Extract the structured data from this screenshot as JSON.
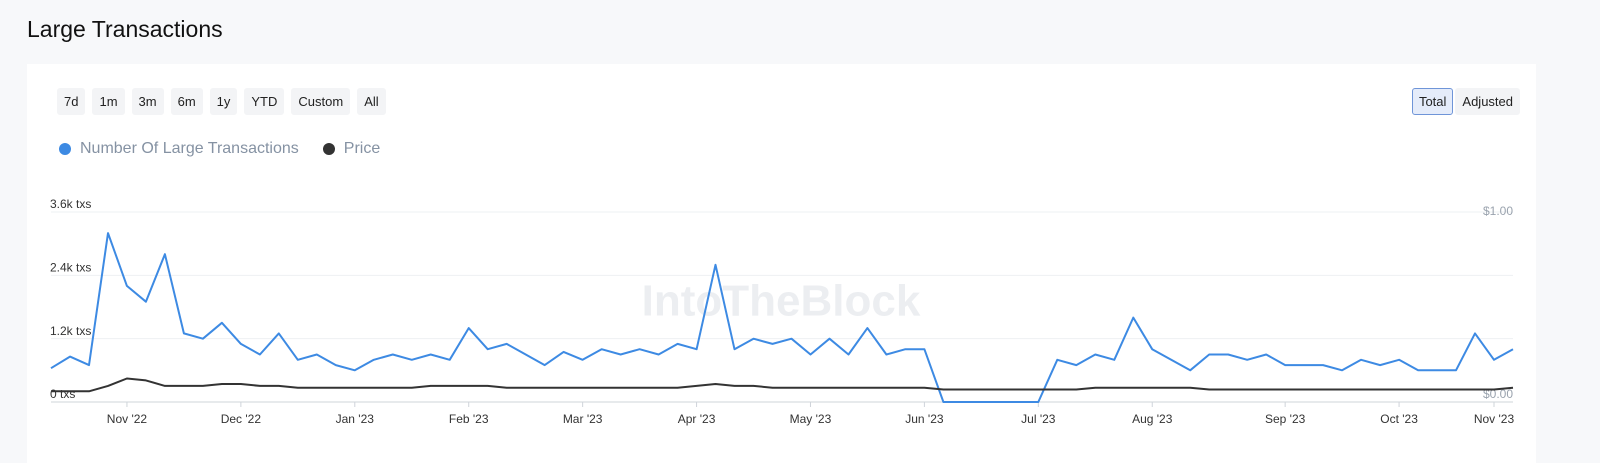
{
  "title": "Large Transactions",
  "controls": {
    "ranges": [
      "7d",
      "1m",
      "3m",
      "6m",
      "1y",
      "YTD",
      "Custom",
      "All"
    ],
    "modes": [
      "Total",
      "Adjusted"
    ]
  },
  "watermark": "IntoTheBlock",
  "chart_data": {
    "type": "line",
    "categories": [
      null,
      null,
      null,
      null,
      "Nov '22",
      null,
      null,
      null,
      null,
      null,
      "Dec '22",
      null,
      null,
      null,
      null,
      null,
      "Jan '23",
      null,
      null,
      null,
      null,
      null,
      "Feb '23",
      null,
      null,
      null,
      null,
      null,
      "Mar '23",
      null,
      null,
      null,
      null,
      null,
      "Apr '23",
      null,
      null,
      null,
      null,
      null,
      "May '23",
      null,
      null,
      null,
      null,
      null,
      "Jun '23",
      null,
      null,
      null,
      null,
      null,
      "Jul '23",
      null,
      null,
      null,
      null,
      null,
      "Aug '23",
      null,
      null,
      null,
      null,
      null,
      null,
      "Sep '23",
      null,
      null,
      null,
      null,
      null,
      "Oct '23",
      null,
      null,
      null,
      null,
      "Nov '23",
      null
    ],
    "series": [
      {
        "name": "Number Of Large Transactions",
        "color": "#3d8ae3",
        "values": [
          640,
          860,
          700,
          3200,
          2200,
          1900,
          2800,
          1300,
          1200,
          1500,
          1100,
          900,
          1300,
          800,
          900,
          700,
          600,
          800,
          900,
          800,
          900,
          800,
          1400,
          1000,
          1100,
          900,
          700,
          950,
          800,
          1000,
          900,
          1000,
          900,
          1100,
          1000,
          2600,
          1000,
          1200,
          1100,
          1200,
          900,
          1200,
          900,
          1400,
          900,
          1000,
          1000,
          0,
          0,
          0,
          0,
          0,
          0,
          800,
          700,
          900,
          800,
          1600,
          1000,
          800,
          600,
          900,
          900,
          800,
          900,
          700,
          700,
          700,
          600,
          800,
          700,
          800,
          600,
          600,
          600,
          1300,
          800,
          1000
        ]
      },
      {
        "name": "Price",
        "color": "#333333",
        "axis": "y2",
        "values": [
          0.02,
          0.02,
          0.02,
          0.05,
          0.09,
          0.08,
          0.05,
          0.05,
          0.05,
          0.06,
          0.06,
          0.05,
          0.05,
          0.04,
          0.04,
          0.04,
          0.04,
          0.04,
          0.04,
          0.04,
          0.05,
          0.05,
          0.05,
          0.05,
          0.04,
          0.04,
          0.04,
          0.04,
          0.04,
          0.04,
          0.04,
          0.04,
          0.04,
          0.04,
          0.05,
          0.06,
          0.05,
          0.05,
          0.04,
          0.04,
          0.04,
          0.04,
          0.04,
          0.04,
          0.04,
          0.04,
          0.04,
          0.03,
          0.03,
          0.03,
          0.03,
          0.03,
          0.03,
          0.03,
          0.03,
          0.04,
          0.04,
          0.04,
          0.04,
          0.04,
          0.04,
          0.03,
          0.03,
          0.03,
          0.03,
          0.03,
          0.03,
          0.03,
          0.03,
          0.03,
          0.03,
          0.03,
          0.03,
          0.03,
          0.03,
          0.03,
          0.03,
          0.04
        ]
      }
    ],
    "ylim": [
      0,
      3600
    ],
    "yticks": [
      {
        "value": 0,
        "label": "0 txs"
      },
      {
        "value": 1200,
        "label": "1.2k txs"
      },
      {
        "value": 2400,
        "label": "2.4k txs"
      },
      {
        "value": 3600,
        "label": "3.6k txs"
      }
    ],
    "y2lim": [
      0,
      1
    ],
    "y2ticks": [
      {
        "value": 0,
        "label": "$0.00"
      },
      {
        "value": 1,
        "label": "$1.00"
      }
    ],
    "grid": true
  }
}
